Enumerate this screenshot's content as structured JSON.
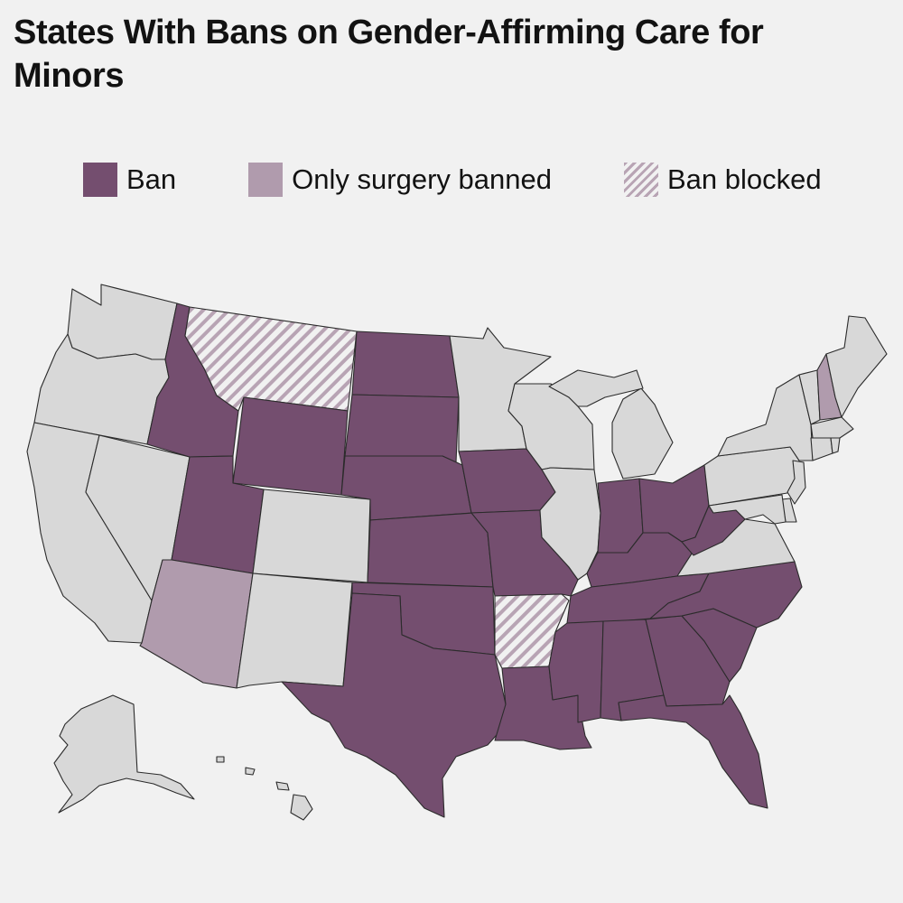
{
  "title": "States With Bans on Gender-Affirming Care for Minors",
  "legend": {
    "ban": "Ban",
    "surgery": "Only surgery banned",
    "blocked": "Ban blocked"
  },
  "colors": {
    "ban": "#744e6f",
    "surgery": "#b09bad",
    "blocked": "#b8a4b4",
    "none": "#d8d8d8",
    "background": "#f1f1f1",
    "border": "#2b2b2b"
  },
  "states": {
    "WA": "none",
    "OR": "none",
    "CA": "none",
    "NV": "none",
    "ID": "ban",
    "MT": "blocked",
    "WY": "ban",
    "UT": "ban",
    "AZ": "surgery",
    "CO": "none",
    "NM": "none",
    "ND": "ban",
    "SD": "ban",
    "NE": "ban",
    "KS": "ban",
    "OK": "ban",
    "TX": "ban",
    "MN": "none",
    "IA": "ban",
    "MO": "ban",
    "AR": "blocked",
    "LA": "ban",
    "WI": "none",
    "IL": "none",
    "MI": "none",
    "IN": "ban",
    "OH": "ban",
    "KY": "ban",
    "TN": "ban",
    "MS": "ban",
    "AL": "ban",
    "GA": "ban",
    "FL": "ban",
    "SC": "ban",
    "NC": "ban",
    "VA": "none",
    "WV": "ban",
    "PA": "none",
    "NY": "none",
    "VT": "none",
    "NH": "surgery",
    "ME": "none",
    "MA": "none",
    "RI": "none",
    "CT": "none",
    "NJ": "none",
    "DE": "none",
    "MD": "none",
    "AK": "none",
    "HI": "none"
  }
}
